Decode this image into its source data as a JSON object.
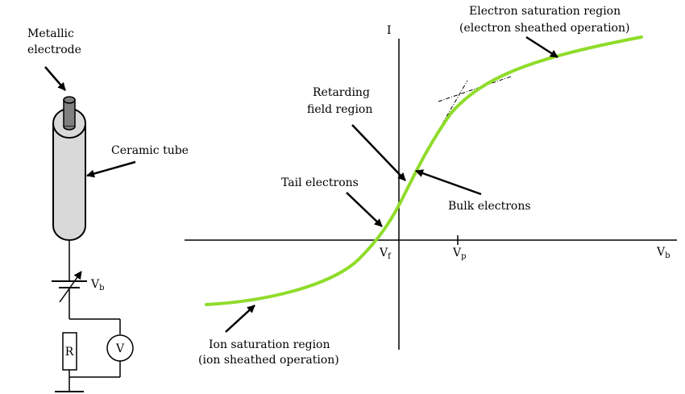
{
  "probe": {
    "electrode_label_line1": "Metallic",
    "electrode_label_line2": "electrode",
    "tube_label": "Ceramic tube",
    "bias_label": "V",
    "bias_sub": "b",
    "resistor_label": "R",
    "voltmeter_label": "V"
  },
  "curve": {
    "axis_y_label": "I",
    "axis_x_label": "V",
    "axis_x_sub": "b",
    "vf_label": "V",
    "vf_sub": "f",
    "vp_label": "V",
    "vp_sub": "p",
    "electron_sat_line1": "Electron saturation region",
    "electron_sat_line2": "(electron sheathed operation)",
    "retarding_line1": "Retarding",
    "retarding_line2": "field region",
    "tail_label": "Tail electrons",
    "bulk_label": "Bulk electrons",
    "ion_sat_line1": "Ion saturation region",
    "ion_sat_line2": "(ion sheathed operation)",
    "curve_color": "#8fdc2a"
  }
}
